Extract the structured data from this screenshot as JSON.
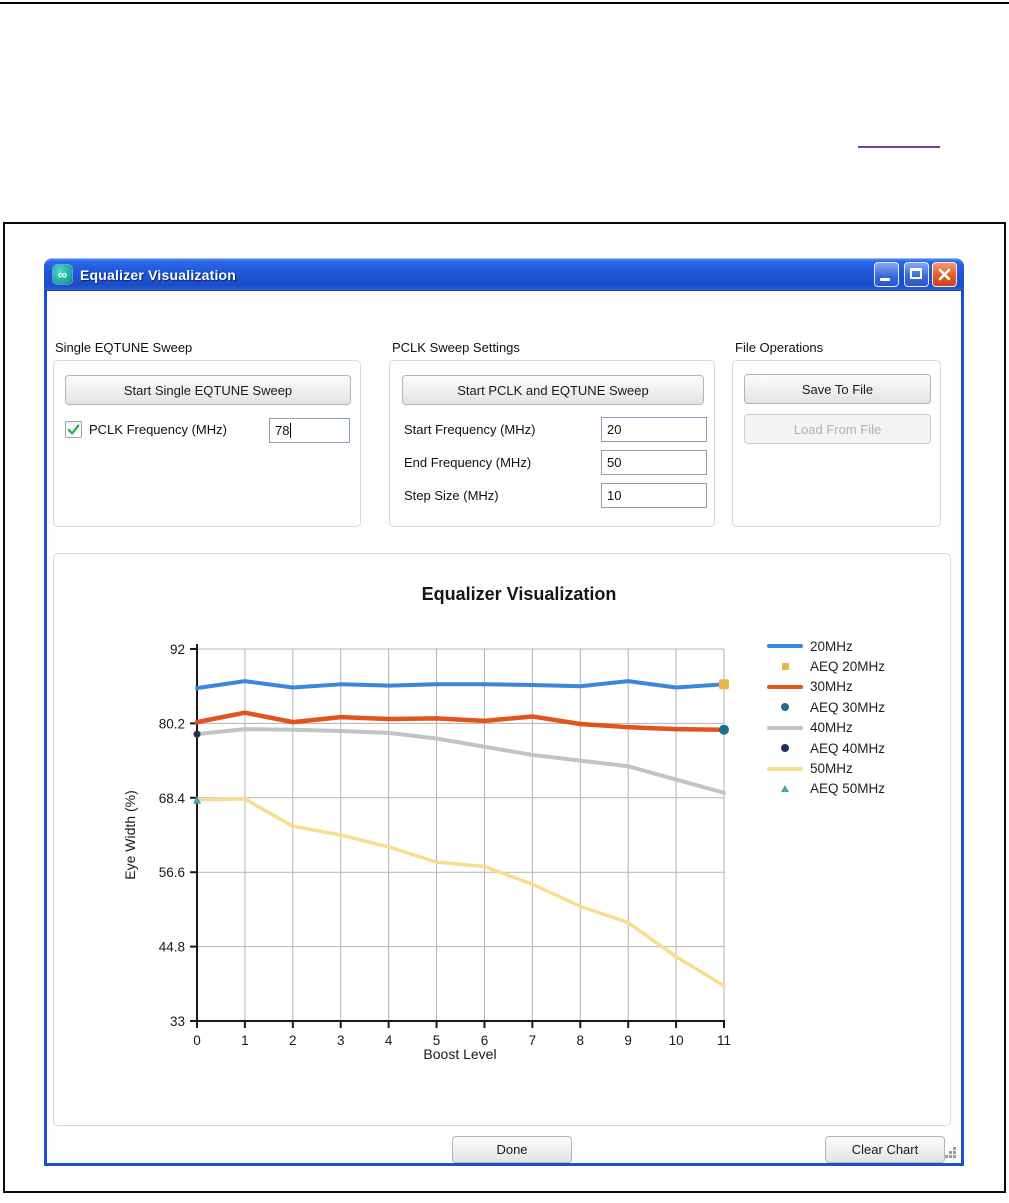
{
  "window": {
    "title": "Equalizer Visualization",
    "icon_glyph": "∞",
    "controls": {
      "minimize": "minimize",
      "maximize": "maximize",
      "close": "close"
    }
  },
  "panels": {
    "single_eqtune": {
      "title": "Single EQTUNE Sweep",
      "start_button": "Start Single EQTUNE Sweep",
      "pclk_checkbox": {
        "label": "PCLK Frequency (MHz)",
        "checked": true,
        "value": "78"
      }
    },
    "pclk_sweep": {
      "title": "PCLK Sweep Settings",
      "start_button": "Start PCLK and EQTUNE Sweep",
      "fields": [
        {
          "label": "Start Frequency (MHz)",
          "value": "20"
        },
        {
          "label": "End Frequency (MHz)",
          "value": "50"
        },
        {
          "label": "Step Size (MHz)",
          "value": "10"
        }
      ]
    },
    "file_operations": {
      "title": "File Operations",
      "save_button": "Save To File",
      "load_button": "Load From File",
      "load_enabled": false
    }
  },
  "footer": {
    "done_button": "Done",
    "clear_chart_button": "Clear Chart"
  },
  "colors": {
    "titlebar_blue": "#1e57d8",
    "window_border": "#1d4fd0",
    "close_red": "#e25c2c",
    "link_purple": "#7b3d9b",
    "grid_gray": "#b3b3b3"
  },
  "chart_data": {
    "type": "line",
    "title": "Equalizer Visualization",
    "xlabel": "Boost Level",
    "ylabel": "Eye Width (%)",
    "x": [
      0,
      1,
      2,
      3,
      4,
      5,
      6,
      7,
      8,
      9,
      10,
      11
    ],
    "xlim": [
      0,
      11
    ],
    "ylim": [
      33,
      92
    ],
    "yticks": [
      92,
      80.2,
      68.4,
      56.6,
      44.8,
      33
    ],
    "grid": true,
    "legend_position": "right",
    "series": [
      {
        "name": "20MHz",
        "color": "#3a87dd",
        "width": 4,
        "values": [
          85.8,
          86.9,
          85.9,
          86.4,
          86.2,
          86.4,
          86.4,
          86.3,
          86.1,
          86.9,
          85.9,
          86.4
        ]
      },
      {
        "name": "30MHz",
        "color": "#e2531d",
        "width": 4.5,
        "values": [
          80.4,
          81.9,
          80.4,
          81.2,
          80.9,
          81.0,
          80.6,
          81.3,
          80.1,
          79.6,
          79.3,
          79.2
        ]
      },
      {
        "name": "40MHz",
        "color": "#c3c3c3",
        "width": 4,
        "values": [
          78.5,
          79.3,
          79.2,
          79.0,
          78.7,
          77.8,
          76.5,
          75.2,
          74.3,
          73.4,
          71.3,
          69.2
        ]
      },
      {
        "name": "50MHz",
        "color": "#f9dd8f",
        "width": 3.5,
        "values": [
          68.1,
          68.2,
          63.9,
          62.5,
          60.6,
          58.2,
          57.5,
          54.7,
          51.2,
          48.6,
          43.2,
          38.6
        ]
      }
    ],
    "markers": [
      {
        "name": "AEQ 20MHz",
        "color": "#edb44e",
        "shape": "square",
        "x": 11,
        "y": 86.4,
        "size": 10
      },
      {
        "name": "AEQ 30MHz",
        "color": "#17708f",
        "shape": "circle",
        "x": 11,
        "y": 79.2,
        "size": 10
      },
      {
        "name": "AEQ 40MHz",
        "color": "#22315c",
        "shape": "circle",
        "x": 0,
        "y": 78.5,
        "size": 7
      },
      {
        "name": "AEQ 50MHz",
        "color": "#43a5ab",
        "shape": "triangle",
        "x": 0,
        "y": 68.1,
        "size": 8
      }
    ]
  }
}
